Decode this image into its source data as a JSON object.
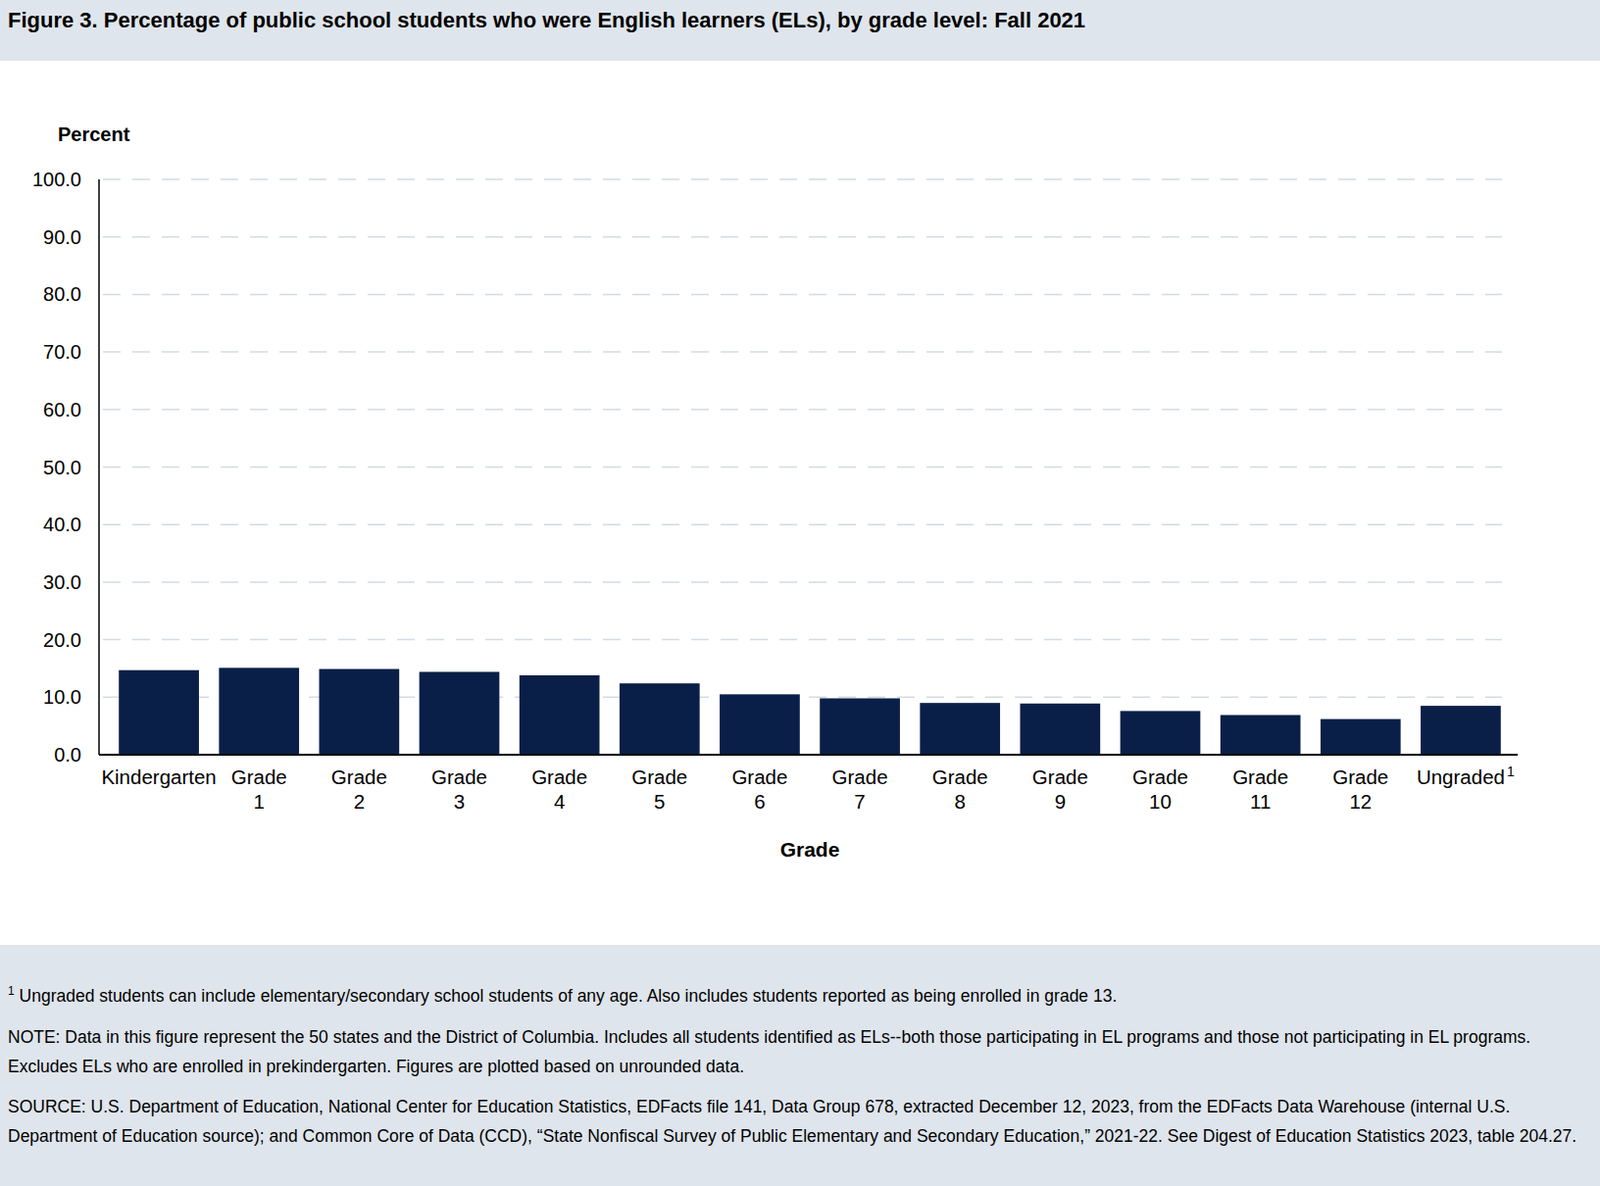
{
  "chart_data": {
    "type": "bar",
    "title": "Figure 3. Percentage of public school students who were English learners (ELs), by grade level: Fall 2021",
    "y_label": "Percent",
    "x_label": "Grade",
    "categories": [
      "Kindergarten",
      "Grade 1",
      "Grade 2",
      "Grade 3",
      "Grade 4",
      "Grade 5",
      "Grade 6",
      "Grade 7",
      "Grade 8",
      "Grade 9",
      "Grade 10",
      "Grade 11",
      "Grade 12",
      "Ungraded"
    ],
    "values": [
      14.7,
      15.1,
      14.9,
      14.4,
      13.8,
      12.4,
      10.5,
      9.8,
      9.0,
      8.9,
      7.6,
      6.9,
      6.2,
      8.5
    ],
    "color": "#0a1f47",
    "ylim": [
      0,
      100
    ],
    "yticks": [
      {
        "value": 0,
        "label": "0.0"
      },
      {
        "value": 10,
        "label": "10.0"
      },
      {
        "value": 20,
        "label": "20.0"
      },
      {
        "value": 30,
        "label": "30.0"
      },
      {
        "value": 40,
        "label": "40.0"
      },
      {
        "value": 50,
        "label": "50.0"
      },
      {
        "value": 60,
        "label": "60.0"
      },
      {
        "value": 70,
        "label": "70.0"
      },
      {
        "value": 80,
        "label": "80.0"
      },
      {
        "value": 90,
        "label": "90.0"
      },
      {
        "value": 100,
        "label": "100.0"
      }
    ],
    "grid": true,
    "footnotes": [
      {
        "marker": "1",
        "category": "Ungraded",
        "text": "Ungraded students can include elementary/secondary school students of any age. Also includes students reported as being enrolled in grade 13."
      }
    ],
    "note": "NOTE: Data in this figure represent the 50 states and the District of Columbia. Includes all students identified as ELs--both those participating in EL programs and those not participating in EL programs. Excludes ELs who are enrolled in prekindergarten. Figures are plotted based on unrounded data.",
    "source": "SOURCE: U.S. Department of Education, National Center for Education Statistics, EDFacts file 141, Data Group 678, extracted December 12, 2023, from the EDFacts Data Warehouse (internal U.S. Department of Education source); and Common Core of Data (CCD), “State Nonfiscal Survey of Public Elementary and Secondary Education,” 2021-22. See Digest of Education Statistics 2023, table 204.27."
  }
}
